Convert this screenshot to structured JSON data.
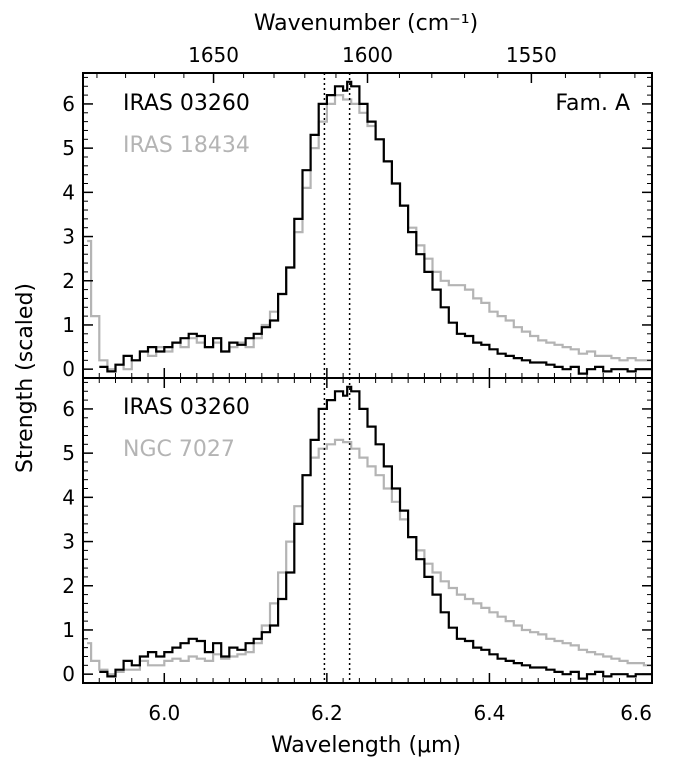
{
  "chart_data": [
    {
      "type": "line",
      "panel": "top",
      "annotation": "Fam. A",
      "ylim": [
        -0.2,
        6.7
      ],
      "yticks": [
        0,
        1,
        2,
        3,
        4,
        5,
        6
      ],
      "xlim": [
        5.9,
        6.6
      ],
      "series": [
        {
          "name": "IRAS 03260",
          "color": "#000000",
          "x": [
            5.92,
            5.93,
            5.94,
            5.95,
            5.96,
            5.97,
            5.98,
            5.99,
            6.0,
            6.01,
            6.02,
            6.03,
            6.04,
            6.05,
            6.06,
            6.07,
            6.08,
            6.09,
            6.1,
            6.11,
            6.12,
            6.13,
            6.14,
            6.15,
            6.16,
            6.17,
            6.18,
            6.19,
            6.2,
            6.21,
            6.22,
            6.225,
            6.23,
            6.24,
            6.25,
            6.26,
            6.27,
            6.28,
            6.29,
            6.3,
            6.31,
            6.32,
            6.33,
            6.34,
            6.35,
            6.36,
            6.37,
            6.38,
            6.39,
            6.4,
            6.41,
            6.42,
            6.43,
            6.44,
            6.45,
            6.46,
            6.47,
            6.48,
            6.49,
            6.5,
            6.51,
            6.52,
            6.53,
            6.54,
            6.55,
            6.56,
            6.57,
            6.58,
            6.59,
            6.6
          ],
          "y": [
            0.05,
            -0.05,
            0.1,
            0.3,
            0.2,
            0.4,
            0.5,
            0.4,
            0.5,
            0.6,
            0.7,
            0.8,
            0.75,
            0.5,
            0.7,
            0.4,
            0.6,
            0.55,
            0.7,
            0.8,
            0.95,
            1.1,
            1.7,
            2.3,
            3.4,
            4.5,
            5.3,
            6.0,
            6.2,
            6.4,
            6.3,
            6.5,
            6.4,
            6.0,
            5.6,
            5.2,
            4.7,
            4.2,
            3.7,
            3.1,
            2.6,
            2.2,
            1.8,
            1.4,
            1.05,
            0.8,
            0.75,
            0.6,
            0.55,
            0.45,
            0.35,
            0.3,
            0.25,
            0.2,
            0.15,
            0.15,
            0.1,
            0.05,
            0.0,
            0.05,
            -0.1,
            0.0,
            0.05,
            -0.05,
            0.0,
            0.0,
            -0.05,
            0.0,
            0.0,
            0.0
          ]
        },
        {
          "name": "IRAS 18434",
          "color": "#b4b4b4",
          "x": [
            5.905,
            5.91,
            5.92,
            5.93,
            5.94,
            5.95,
            5.96,
            5.97,
            5.98,
            5.99,
            6.0,
            6.01,
            6.02,
            6.03,
            6.04,
            6.05,
            6.06,
            6.07,
            6.08,
            6.09,
            6.1,
            6.11,
            6.12,
            6.13,
            6.14,
            6.15,
            6.16,
            6.17,
            6.18,
            6.19,
            6.2,
            6.21,
            6.22,
            6.23,
            6.24,
            6.25,
            6.26,
            6.27,
            6.28,
            6.29,
            6.3,
            6.31,
            6.32,
            6.33,
            6.34,
            6.35,
            6.36,
            6.37,
            6.38,
            6.39,
            6.4,
            6.41,
            6.42,
            6.43,
            6.44,
            6.45,
            6.46,
            6.47,
            6.48,
            6.49,
            6.5,
            6.51,
            6.52,
            6.53,
            6.54,
            6.55,
            6.56,
            6.57,
            6.58,
            6.59,
            6.6
          ],
          "y": [
            2.9,
            1.2,
            0.2,
            0.0,
            0.1,
            0.0,
            0.2,
            0.4,
            0.3,
            0.5,
            0.4,
            0.6,
            0.5,
            0.7,
            0.6,
            0.5,
            0.6,
            0.4,
            0.5,
            0.6,
            0.5,
            0.7,
            1.0,
            1.3,
            1.7,
            2.3,
            3.1,
            4.1,
            5.0,
            5.6,
            6.0,
            6.2,
            6.1,
            6.0,
            5.8,
            5.5,
            5.2,
            4.7,
            4.2,
            3.7,
            3.2,
            2.8,
            2.5,
            2.2,
            2.0,
            1.9,
            1.9,
            1.8,
            1.6,
            1.5,
            1.3,
            1.2,
            1.1,
            0.95,
            0.85,
            0.75,
            0.65,
            0.6,
            0.55,
            0.5,
            0.45,
            0.35,
            0.4,
            0.3,
            0.3,
            0.25,
            0.2,
            0.25,
            0.2,
            0.2,
            0.2
          ]
        }
      ],
      "vlines": [
        6.197,
        6.228
      ]
    },
    {
      "type": "line",
      "panel": "bottom",
      "ylim": [
        -0.2,
        6.7
      ],
      "yticks": [
        0,
        1,
        2,
        3,
        4,
        5,
        6
      ],
      "xlim": [
        5.9,
        6.6
      ],
      "xticks": [
        6.0,
        6.2,
        6.4,
        6.6
      ],
      "xticklabels": [
        "6.0",
        "6.2",
        "6.4",
        "6.6"
      ],
      "xlabel": "Wavelength (μm)",
      "ylabel": "Strength (scaled)",
      "top_axis": {
        "label": "Wavenumber (cm⁻¹)",
        "ticks": [
          1650,
          1600,
          1550
        ],
        "ticklabels": [
          "1650",
          "1600",
          "1550"
        ]
      },
      "series": [
        {
          "name": "IRAS 03260",
          "color": "#000000",
          "x": [
            5.92,
            5.93,
            5.94,
            5.95,
            5.96,
            5.97,
            5.98,
            5.99,
            6.0,
            6.01,
            6.02,
            6.03,
            6.04,
            6.05,
            6.06,
            6.07,
            6.08,
            6.09,
            6.1,
            6.11,
            6.12,
            6.13,
            6.14,
            6.15,
            6.16,
            6.17,
            6.18,
            6.19,
            6.2,
            6.21,
            6.22,
            6.225,
            6.23,
            6.24,
            6.25,
            6.26,
            6.27,
            6.28,
            6.29,
            6.3,
            6.31,
            6.32,
            6.33,
            6.34,
            6.35,
            6.36,
            6.37,
            6.38,
            6.39,
            6.4,
            6.41,
            6.42,
            6.43,
            6.44,
            6.45,
            6.46,
            6.47,
            6.48,
            6.49,
            6.5,
            6.51,
            6.52,
            6.53,
            6.54,
            6.55,
            6.56,
            6.57,
            6.58,
            6.59,
            6.6
          ],
          "y": [
            0.05,
            -0.05,
            0.1,
            0.3,
            0.2,
            0.4,
            0.5,
            0.4,
            0.5,
            0.6,
            0.7,
            0.8,
            0.75,
            0.5,
            0.7,
            0.4,
            0.6,
            0.55,
            0.7,
            0.8,
            0.95,
            1.1,
            1.7,
            2.3,
            3.4,
            4.5,
            5.3,
            6.0,
            6.2,
            6.4,
            6.3,
            6.5,
            6.4,
            6.0,
            5.6,
            5.2,
            4.7,
            4.2,
            3.7,
            3.1,
            2.6,
            2.2,
            1.8,
            1.4,
            1.05,
            0.8,
            0.75,
            0.6,
            0.55,
            0.45,
            0.35,
            0.3,
            0.25,
            0.2,
            0.15,
            0.15,
            0.1,
            0.05,
            0.0,
            0.05,
            -0.1,
            0.0,
            0.05,
            -0.05,
            0.0,
            0.0,
            -0.05,
            0.0,
            0.0,
            0.0
          ]
        },
        {
          "name": "NGC 7027",
          "color": "#b4b4b4",
          "x": [
            5.905,
            5.91,
            5.92,
            5.93,
            5.94,
            5.95,
            5.96,
            5.97,
            5.98,
            5.99,
            6.0,
            6.01,
            6.02,
            6.03,
            6.04,
            6.05,
            6.06,
            6.07,
            6.08,
            6.09,
            6.1,
            6.11,
            6.12,
            6.13,
            6.14,
            6.15,
            6.16,
            6.17,
            6.18,
            6.19,
            6.2,
            6.21,
            6.22,
            6.23,
            6.24,
            6.25,
            6.26,
            6.27,
            6.28,
            6.29,
            6.3,
            6.31,
            6.32,
            6.33,
            6.34,
            6.35,
            6.36,
            6.37,
            6.38,
            6.39,
            6.4,
            6.41,
            6.42,
            6.43,
            6.44,
            6.45,
            6.46,
            6.47,
            6.48,
            6.49,
            6.5,
            6.51,
            6.52,
            6.53,
            6.54,
            6.55,
            6.56,
            6.57,
            6.58,
            6.59,
            6.6
          ],
          "y": [
            0.7,
            0.3,
            0.1,
            0.0,
            0.05,
            0.1,
            0.1,
            0.3,
            0.2,
            0.2,
            0.3,
            0.35,
            0.3,
            0.4,
            0.35,
            0.3,
            0.45,
            0.35,
            0.4,
            0.45,
            0.5,
            0.7,
            1.1,
            1.6,
            2.3,
            3.0,
            3.8,
            4.5,
            4.9,
            5.1,
            5.2,
            5.3,
            5.25,
            5.1,
            4.9,
            4.7,
            4.5,
            4.2,
            3.9,
            3.5,
            3.1,
            2.8,
            2.5,
            2.3,
            2.1,
            1.95,
            1.8,
            1.7,
            1.6,
            1.5,
            1.4,
            1.3,
            1.2,
            1.1,
            1.0,
            0.95,
            0.9,
            0.8,
            0.75,
            0.7,
            0.65,
            0.55,
            0.5,
            0.45,
            0.4,
            0.35,
            0.3,
            0.25,
            0.25,
            0.2,
            0.2
          ]
        }
      ],
      "vlines": [
        6.197,
        6.228
      ]
    }
  ]
}
